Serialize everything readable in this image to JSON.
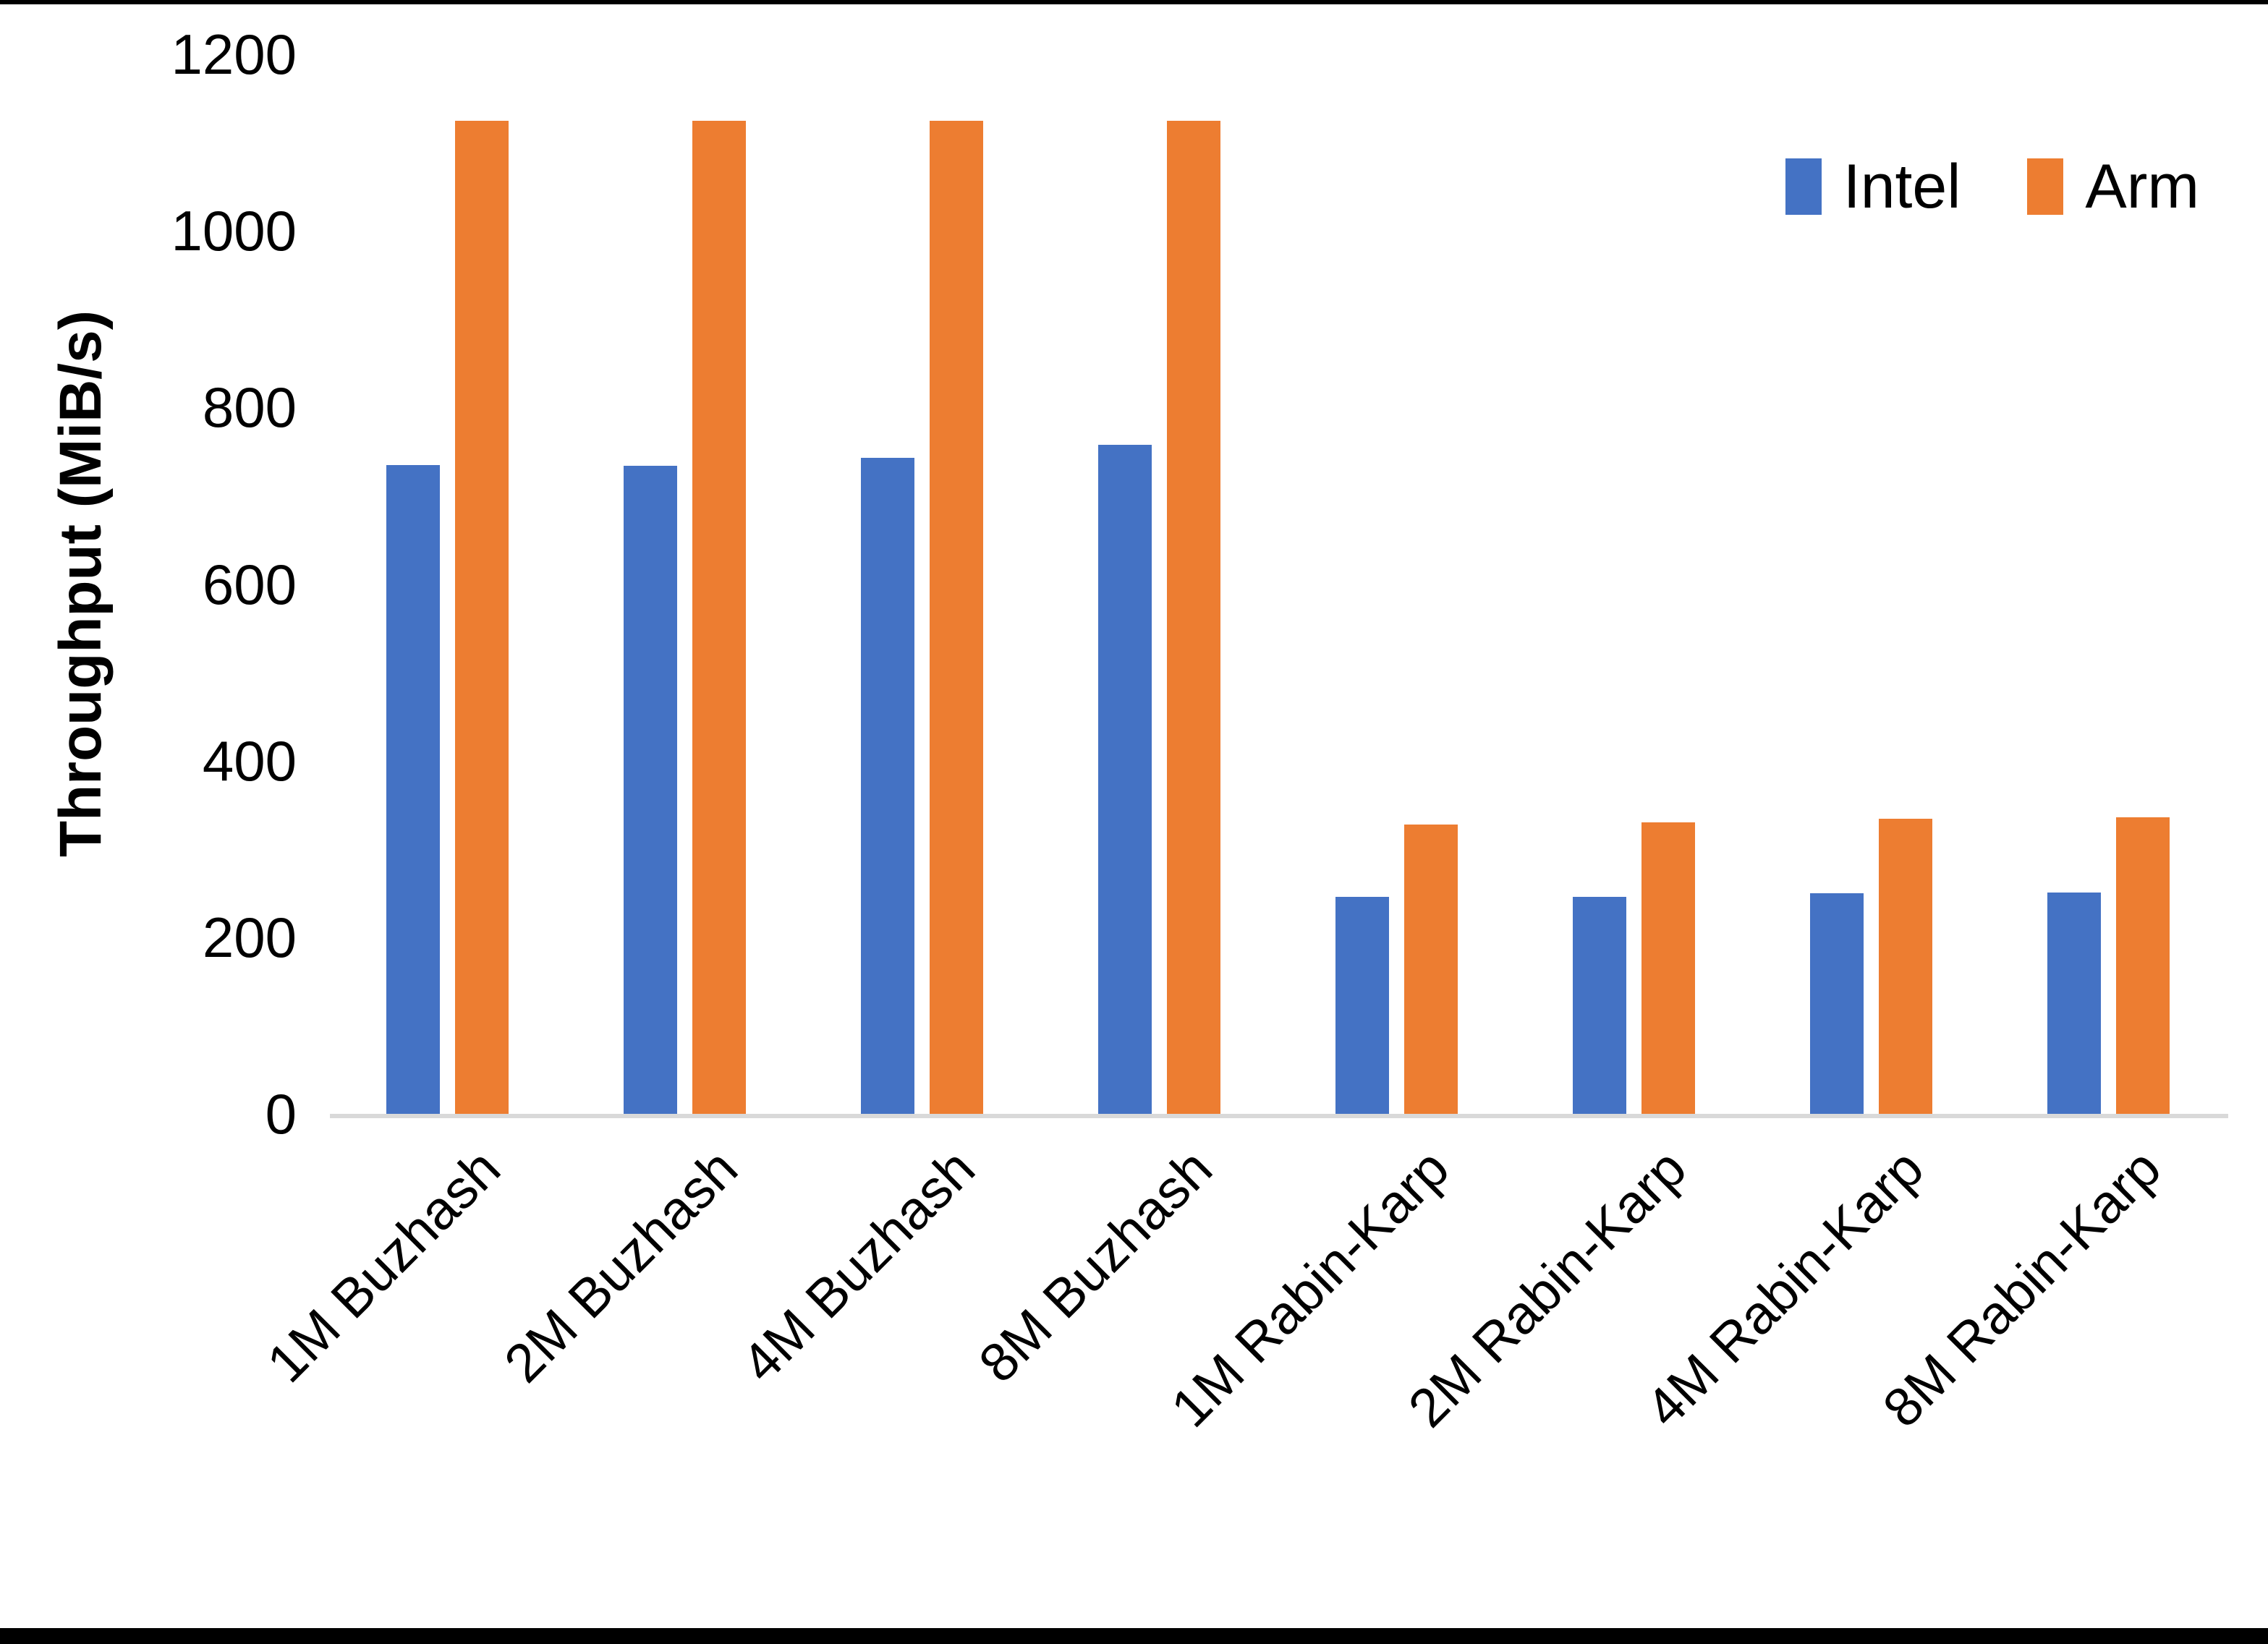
{
  "page": {
    "background_color": "#ffffff",
    "top_border_color": "#000000",
    "bottom_border_color": "#000000",
    "axis_line_color": "#d9d9d9",
    "text_color": "#000000"
  },
  "chart_data": {
    "type": "bar",
    "title": "",
    "xlabel": "",
    "ylabel": "Throughput (MiB/s)",
    "ylim": [
      0,
      1200
    ],
    "yticks": [
      0,
      200,
      400,
      600,
      800,
      1000,
      1200
    ],
    "grid": false,
    "legend_position": "top-right",
    "categories": [
      "1M Buzhash",
      "2M Buzhash",
      "4M Buzhash",
      "8M Buzhash",
      "1M Rabin-Karp",
      "2M Rabin-Karp",
      "4M Rabin-Karp",
      "8M Rabin-Karp"
    ],
    "series": [
      {
        "name": "Intel",
        "color": "#4472C4",
        "values": [
          735,
          734,
          743,
          758,
          246,
          246,
          250,
          251
        ]
      },
      {
        "name": "Arm",
        "color": "#ED7D31",
        "values": [
          1125,
          1125,
          1125,
          1125,
          328,
          330,
          334,
          336
        ]
      }
    ]
  }
}
